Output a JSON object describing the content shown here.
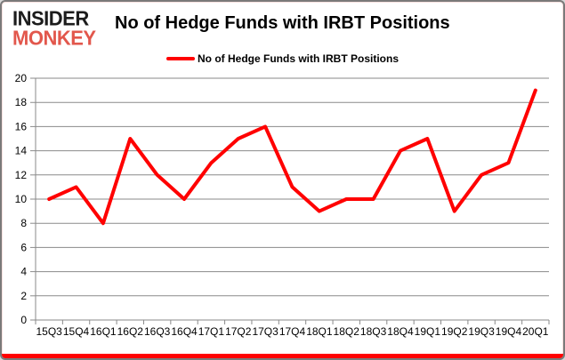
{
  "branding": {
    "logo_line1": "INSIDER",
    "logo_line2": "MONKEY",
    "logo_color_primary": "#1c1c1c",
    "logo_color_accent": "#e2574c"
  },
  "header": {
    "title": "No of Hedge Funds with IRBT Positions"
  },
  "legend": {
    "label": "No of Hedge Funds with IRBT Positions",
    "swatch_color": "#ff0000"
  },
  "chart_data": {
    "type": "line",
    "title": "No of Hedge Funds with IRBT Positions",
    "categories": [
      "15Q3",
      "15Q4",
      "16Q1",
      "16Q2",
      "16Q3",
      "16Q4",
      "17Q1",
      "17Q2",
      "17Q3",
      "17Q4",
      "18Q1",
      "18Q2",
      "18Q3",
      "18Q4",
      "19Q1",
      "19Q2",
      "19Q3",
      "19Q4",
      "20Q1"
    ],
    "series": [
      {
        "name": "No of Hedge Funds with IRBT Positions",
        "color": "#ff0000",
        "values": [
          10,
          11,
          8,
          15,
          12,
          10,
          13,
          15,
          16,
          11,
          9,
          10,
          10,
          14,
          15,
          9,
          12,
          13,
          19
        ]
      }
    ],
    "xlabel": "",
    "ylabel": "",
    "ylim": [
      0,
      20
    ],
    "ytick_step": 2,
    "grid": "horizontal",
    "legend_position": "top-center",
    "colors": {
      "gridline": "#8a8a8a",
      "axis": "#8a8a8a",
      "labels": "#000000"
    }
  },
  "frame": {
    "border_color": "#7a7a7a",
    "bottom_bar_color": "#ff0000",
    "background": "#ffffff"
  }
}
